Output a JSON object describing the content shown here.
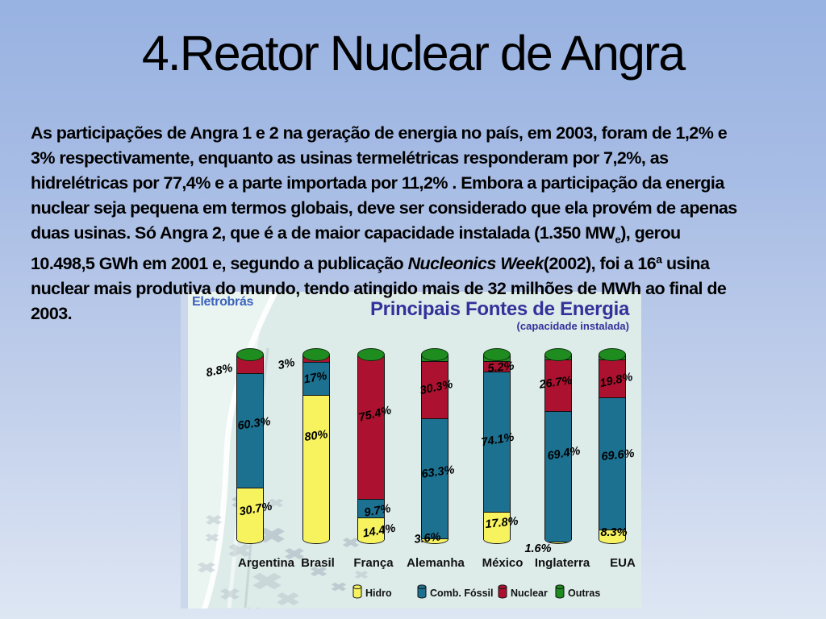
{
  "slide": {
    "title": "4.Reator Nuclear de Angra",
    "paragraph_lines": [
      [
        {
          "t": "As participações de Angra 1 e 2 na geração de energia no país, em 2003, foram de 1,2% e",
          "s": "normal"
        }
      ],
      [
        {
          "t": "3% respectivamente, enquanto as usinas termelétricas responderam por 7,2%, as",
          "s": "normal"
        }
      ],
      [
        {
          "t": "hidrelétricas por 77,4% e a parte importada por 11,2% . Embora a participação da energia",
          "s": "normal"
        }
      ],
      [
        {
          "t": "nuclear seja pequena em termos globais, deve ser considerado que ela provém de apenas",
          "s": "normal"
        }
      ],
      [
        {
          "t": "duas usinas. Só Angra 2, que é a de maior capacidade instalada (1.350 MW",
          "s": "normal"
        },
        {
          "t": "e",
          "s": "sub"
        },
        {
          "t": "), gerou",
          "s": "normal"
        }
      ],
      [
        {
          "t": "10.498,5 GWh em 2001 e, segundo a publicação ",
          "s": "normal"
        },
        {
          "t": "Nucleonics Week",
          "s": "italic"
        },
        {
          "t": "(2002), foi a 16ª usina",
          "s": "normal"
        }
      ],
      [
        {
          "t": "nuclear mais produtiva do mundo, tendo atingido mais de 32 milhões de MWh ao final de",
          "s": "normal"
        }
      ],
      [
        {
          "t": "2003.",
          "s": "normal"
        }
      ]
    ]
  },
  "chart": {
    "brand": "Eletrobrás",
    "series_colors": {
      "Hidro": "#f7f35f",
      "Comb. Fóssil": "#1c7191",
      "Nuclear": "#ad1130",
      "Outras": "#1f8c20"
    },
    "title_color": "#32329b",
    "brand_color": "#3c63bd",
    "background_color": "#ddebe9"
  },
  "chart_data": {
    "type": "bar",
    "stacked": true,
    "title": "Principais Fontes de Energia",
    "subtitle": "(capacidade instalada)",
    "unit": "percent",
    "ylim": [
      0,
      100
    ],
    "legend_position": "bottom",
    "categories": [
      "Argentina",
      "Brasil",
      "França",
      "Alemanha",
      "México",
      "Inglaterra",
      "EUA"
    ],
    "series": [
      {
        "name": "Hidro",
        "values": [
          30.7,
          80,
          14.4,
          3.6,
          17.8,
          1.6,
          8.3
        ],
        "labels": [
          "30.7%",
          "80%",
          "14.4%",
          "3.6%",
          "17.8%",
          "1.6%",
          "8.3%"
        ]
      },
      {
        "name": "Comb. Fóssil",
        "values": [
          60.3,
          17,
          9.7,
          63.3,
          74.1,
          69.4,
          69.6
        ],
        "labels": [
          "60.3%",
          "17%",
          "9.7%",
          "63.3%",
          "74.1%",
          "69.4%",
          "69.6%"
        ]
      },
      {
        "name": "Nuclear",
        "values": [
          8.8,
          3,
          75.4,
          30.3,
          5.2,
          26.7,
          19.8
        ],
        "labels": [
          "8.8%",
          "3%",
          "75.4%",
          "30.3%",
          "5.2%",
          "26.7%",
          "19.8%"
        ]
      },
      {
        "name": "Outras",
        "values": [],
        "labels": []
      }
    ],
    "legend": [
      "Hidro",
      "Comb. Fóssil",
      "Nuclear",
      "Outras"
    ]
  }
}
